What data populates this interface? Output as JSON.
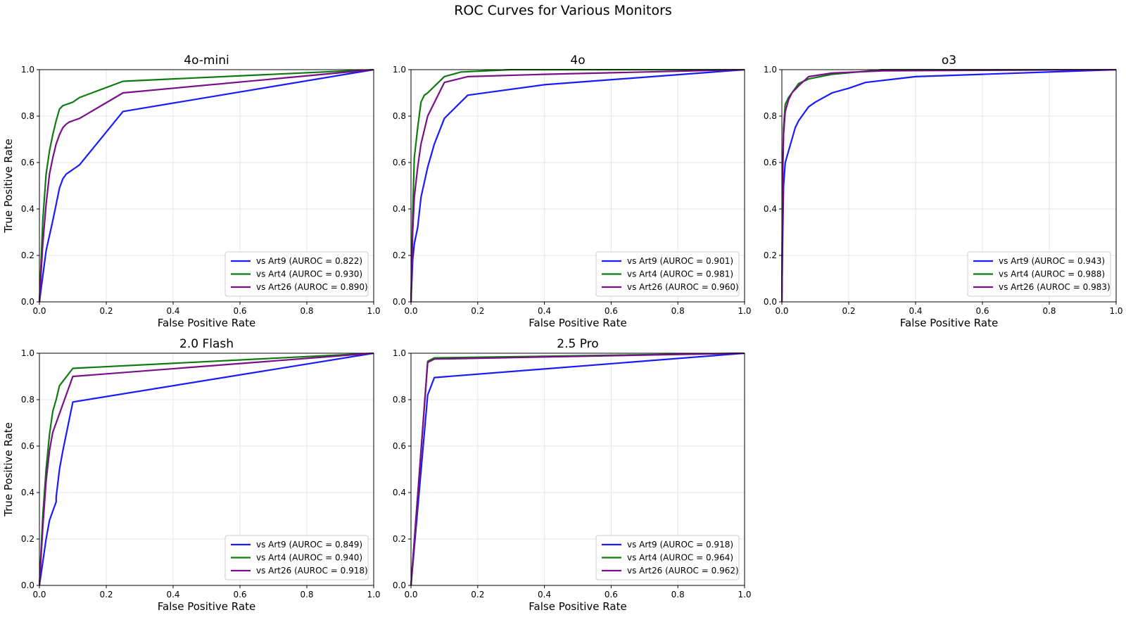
{
  "figure_title": "ROC Curves for Various Monitors",
  "colors": {
    "Art9": "#1a1aff",
    "Art4": "#0f7a0f",
    "Art26": "#7a0f8a",
    "grid": "#e6e6e6"
  },
  "chart_data": [
    {
      "type": "line",
      "title": "4o-mini",
      "xlabel": "False Positive Rate",
      "ylabel": "True Positive Rate",
      "xlim": [
        0,
        1
      ],
      "ylim": [
        0,
        1
      ],
      "xticks": [
        "0.0",
        "0.2",
        "0.4",
        "0.6",
        "0.8",
        "1.0"
      ],
      "yticks": [
        "0.0",
        "0.2",
        "0.4",
        "0.6",
        "0.8",
        "1.0"
      ],
      "grid": true,
      "legend_position": "lower-right",
      "series": [
        {
          "name": "vs Art9 (AUROC = 0.822)",
          "color": "#1a1aff",
          "x": [
            0,
            0.02,
            0.04,
            0.05,
            0.06,
            0.065,
            0.07,
            0.08,
            0.09,
            0.1,
            0.11,
            0.12,
            0.25,
            1.0
          ],
          "y": [
            0,
            0.22,
            0.35,
            0.42,
            0.49,
            0.51,
            0.53,
            0.55,
            0.56,
            0.57,
            0.58,
            0.59,
            0.82,
            1.0
          ]
        },
        {
          "name": "vs Art4 (AUROC = 0.930)",
          "color": "#0f7a0f",
          "x": [
            0,
            0.01,
            0.02,
            0.03,
            0.04,
            0.05,
            0.06,
            0.07,
            0.08,
            0.09,
            0.1,
            0.11,
            0.12,
            0.25,
            1.0
          ],
          "y": [
            0,
            0.35,
            0.55,
            0.65,
            0.72,
            0.78,
            0.83,
            0.845,
            0.85,
            0.855,
            0.86,
            0.87,
            0.88,
            0.95,
            1.0
          ]
        },
        {
          "name": "vs Art26 (AUROC = 0.890)",
          "color": "#7a0f8a",
          "x": [
            0,
            0.01,
            0.02,
            0.03,
            0.04,
            0.05,
            0.06,
            0.07,
            0.08,
            0.09,
            0.1,
            0.11,
            0.12,
            0.25,
            1.0
          ],
          "y": [
            0,
            0.25,
            0.42,
            0.55,
            0.62,
            0.68,
            0.72,
            0.75,
            0.765,
            0.775,
            0.78,
            0.785,
            0.79,
            0.9,
            1.0
          ]
        }
      ]
    },
    {
      "type": "line",
      "title": "4o",
      "xlabel": "False Positive Rate",
      "ylabel": "",
      "xlim": [
        0,
        1
      ],
      "ylim": [
        0,
        1
      ],
      "xticks": [
        "0.0",
        "0.2",
        "0.4",
        "0.6",
        "0.8",
        "1.0"
      ],
      "yticks": [
        "0.0",
        "0.2",
        "0.4",
        "0.6",
        "0.8",
        "1.0"
      ],
      "grid": true,
      "legend_position": "lower-right",
      "series": [
        {
          "name": "vs Art9 (AUROC = 0.901)",
          "color": "#1a1aff",
          "x": [
            0,
            0.005,
            0.01,
            0.02,
            0.03,
            0.05,
            0.07,
            0.1,
            0.17,
            0.4,
            1.0
          ],
          "y": [
            0,
            0.18,
            0.25,
            0.32,
            0.45,
            0.58,
            0.68,
            0.79,
            0.89,
            0.935,
            1.0
          ]
        },
        {
          "name": "vs Art4 (AUROC = 0.981)",
          "color": "#0f7a0f",
          "x": [
            0,
            0.005,
            0.01,
            0.02,
            0.03,
            0.04,
            0.05,
            0.1,
            0.15,
            0.3,
            1.0
          ],
          "y": [
            0,
            0.38,
            0.62,
            0.75,
            0.86,
            0.89,
            0.9,
            0.97,
            0.99,
            1.0,
            1.0
          ]
        },
        {
          "name": "vs Art26 (AUROC = 0.960)",
          "color": "#7a0f8a",
          "x": [
            0,
            0.005,
            0.01,
            0.02,
            0.03,
            0.05,
            0.1,
            0.17,
            0.4,
            1.0
          ],
          "y": [
            0,
            0.3,
            0.45,
            0.58,
            0.68,
            0.8,
            0.945,
            0.97,
            0.98,
            1.0
          ]
        }
      ]
    },
    {
      "type": "line",
      "title": "o3",
      "xlabel": "False Positive Rate",
      "ylabel": "",
      "xlim": [
        0,
        1
      ],
      "ylim": [
        0,
        1
      ],
      "xticks": [
        "0.0",
        "0.2",
        "0.4",
        "0.6",
        "0.8",
        "1.0"
      ],
      "yticks": [
        "0.0",
        "0.2",
        "0.4",
        "0.6",
        "0.8",
        "1.0"
      ],
      "grid": true,
      "legend_position": "lower-right",
      "series": [
        {
          "name": "vs Art9 (AUROC = 0.943)",
          "color": "#1a1aff",
          "x": [
            0,
            0.002,
            0.005,
            0.01,
            0.02,
            0.03,
            0.04,
            0.05,
            0.06,
            0.08,
            0.1,
            0.15,
            0.2,
            0.25,
            0.4,
            0.6,
            1.0
          ],
          "y": [
            0,
            0.25,
            0.5,
            0.6,
            0.65,
            0.7,
            0.75,
            0.78,
            0.8,
            0.84,
            0.86,
            0.9,
            0.92,
            0.945,
            0.97,
            0.98,
            1.0
          ]
        },
        {
          "name": "vs Art4 (AUROC = 0.988)",
          "color": "#0f7a0f",
          "x": [
            0,
            0.002,
            0.005,
            0.01,
            0.02,
            0.03,
            0.05,
            0.08,
            0.15,
            0.3,
            1.0
          ],
          "y": [
            0,
            0.55,
            0.75,
            0.85,
            0.88,
            0.9,
            0.94,
            0.96,
            0.98,
            1.0,
            1.0
          ]
        },
        {
          "name": "vs Art26 (AUROC = 0.983)",
          "color": "#7a0f8a",
          "x": [
            0,
            0.002,
            0.005,
            0.01,
            0.02,
            0.03,
            0.05,
            0.08,
            0.15,
            0.3,
            1.0
          ],
          "y": [
            0,
            0.5,
            0.72,
            0.82,
            0.87,
            0.9,
            0.93,
            0.97,
            0.985,
            0.995,
            1.0
          ]
        }
      ]
    },
    {
      "type": "line",
      "title": "2.0 Flash",
      "xlabel": "False Positive Rate",
      "ylabel": "True Positive Rate",
      "xlim": [
        0,
        1
      ],
      "ylim": [
        0,
        1
      ],
      "xticks": [
        "0.0",
        "0.2",
        "0.4",
        "0.6",
        "0.8",
        "1.0"
      ],
      "yticks": [
        "0.0",
        "0.2",
        "0.4",
        "0.6",
        "0.8",
        "1.0"
      ],
      "grid": true,
      "legend_position": "lower-right",
      "series": [
        {
          "name": "vs Art9 (AUROC = 0.849)",
          "color": "#1a1aff",
          "x": [
            0,
            0.01,
            0.02,
            0.03,
            0.04,
            0.05,
            0.05,
            0.06,
            0.07,
            0.1,
            1.0
          ],
          "y": [
            0,
            0.1,
            0.2,
            0.28,
            0.32,
            0.36,
            0.38,
            0.5,
            0.58,
            0.79,
            1.0
          ]
        },
        {
          "name": "vs Art4 (AUROC = 0.940)",
          "color": "#0f7a0f",
          "x": [
            0,
            0.01,
            0.02,
            0.03,
            0.04,
            0.05,
            0.06,
            0.1,
            1.0
          ],
          "y": [
            0,
            0.3,
            0.5,
            0.65,
            0.75,
            0.8,
            0.86,
            0.935,
            1.0
          ]
        },
        {
          "name": "vs Art26 (AUROC = 0.918)",
          "color": "#7a0f8a",
          "x": [
            0,
            0.01,
            0.02,
            0.03,
            0.04,
            0.05,
            0.1,
            1.0
          ],
          "y": [
            0,
            0.25,
            0.45,
            0.58,
            0.66,
            0.7,
            0.9,
            1.0
          ]
        }
      ]
    },
    {
      "type": "line",
      "title": "2.5 Pro",
      "xlabel": "False Positive Rate",
      "ylabel": "",
      "xlim": [
        0,
        1
      ],
      "ylim": [
        0,
        1
      ],
      "xticks": [
        "0.0",
        "0.2",
        "0.4",
        "0.6",
        "0.8",
        "1.0"
      ],
      "yticks": [
        "0.0",
        "0.2",
        "0.4",
        "0.6",
        "0.8",
        "1.0"
      ],
      "grid": true,
      "legend_position": "lower-right",
      "series": [
        {
          "name": "vs Art9 (AUROC = 0.918)",
          "color": "#1a1aff",
          "x": [
            0,
            0.05,
            0.07,
            1.0
          ],
          "y": [
            0,
            0.82,
            0.895,
            1.0
          ]
        },
        {
          "name": "vs Art4 (AUROC = 0.964)",
          "color": "#0f7a0f",
          "x": [
            0,
            0.05,
            0.07,
            1.0
          ],
          "y": [
            0,
            0.965,
            0.98,
            1.0
          ]
        },
        {
          "name": "vs Art26 (AUROC = 0.962)",
          "color": "#7a0f8a",
          "x": [
            0,
            0.05,
            0.07,
            1.0
          ],
          "y": [
            0,
            0.96,
            0.975,
            1.0
          ]
        }
      ]
    }
  ]
}
